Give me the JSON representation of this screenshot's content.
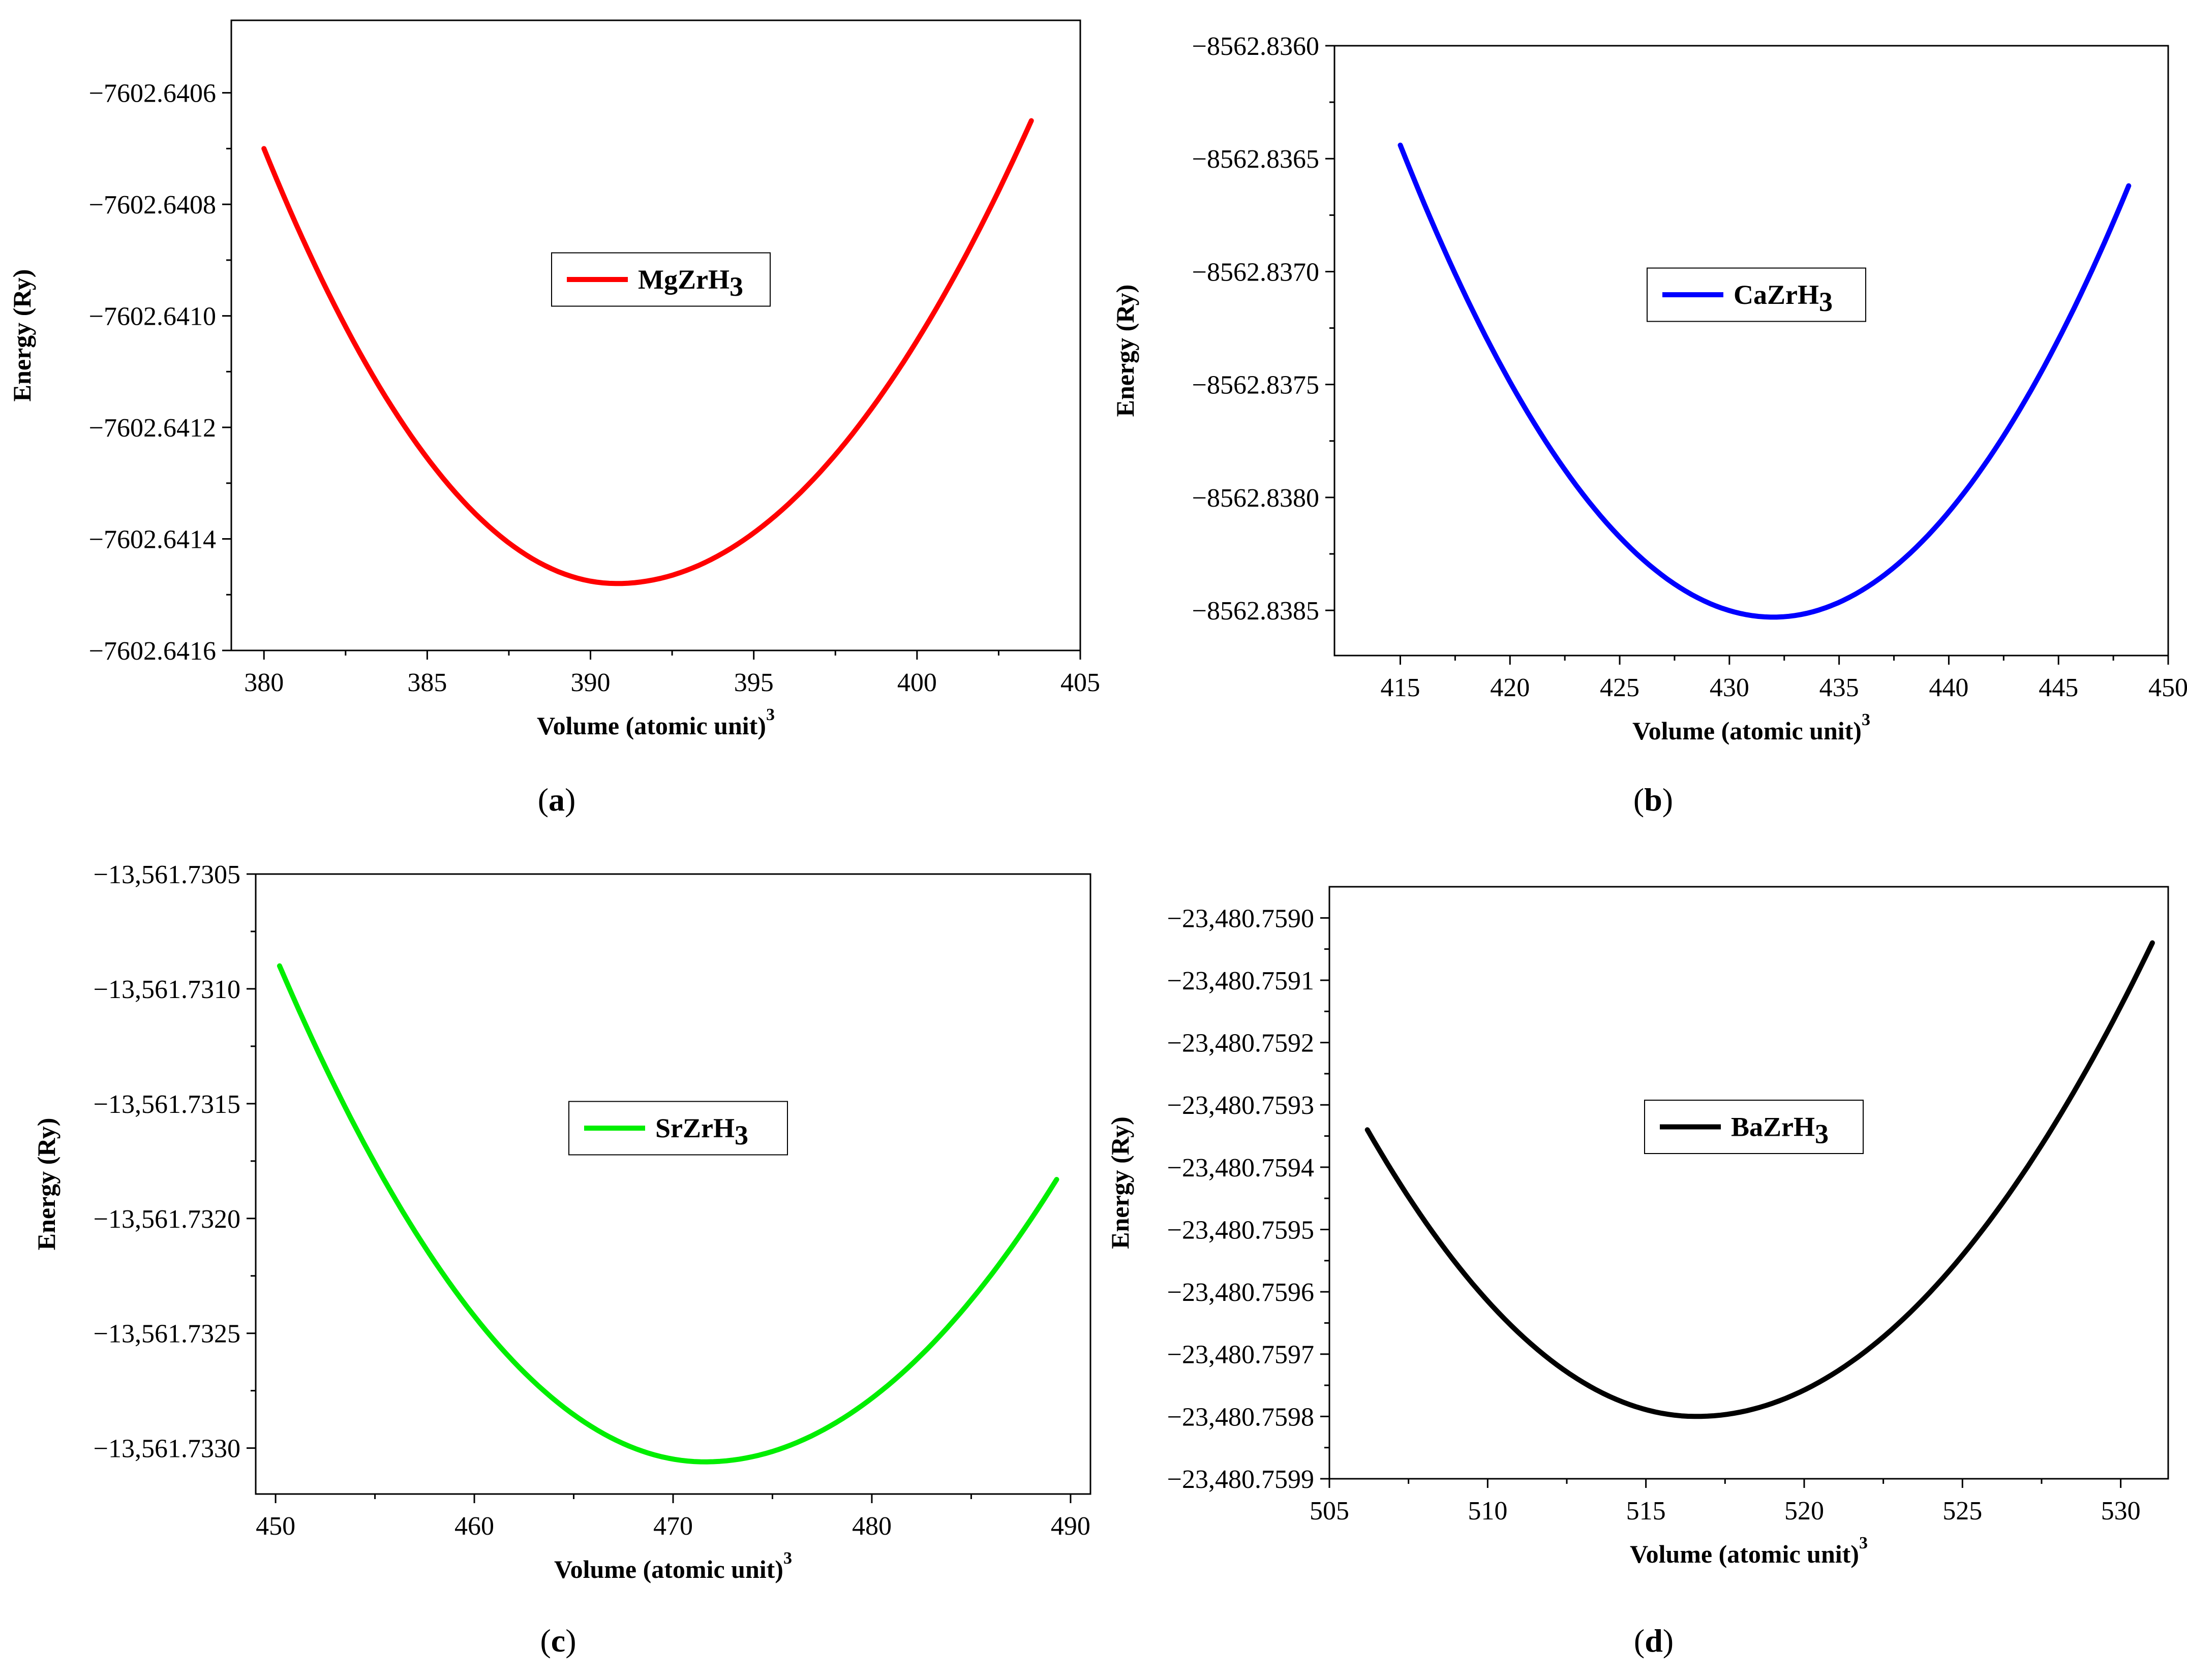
{
  "chart_data": [
    {
      "type": "line",
      "caption": "a",
      "title": "",
      "xlabel": "Volume (atomic unit)",
      "xlabel_superscript": "3",
      "ylabel": "Energy (Ry)",
      "xlim": [
        379,
        405
      ],
      "ylim": [
        -7602.6416,
        -7602.64047
      ],
      "x_ticks": [
        380,
        385,
        390,
        395,
        400,
        405
      ],
      "y_ticks": [
        -7602.6406,
        -7602.6408,
        -7602.641,
        -7602.6412,
        -7602.6414,
        -7602.6416
      ],
      "x_tick_labels": [
        "380",
        "385",
        "390",
        "395",
        "400",
        "405"
      ],
      "y_tick_labels": [
        "−7602.6406",
        "−7602.6408",
        "−7602.6410",
        "−7602.6412",
        "−7602.6414",
        "−7602.6416"
      ],
      "series": [
        {
          "name": "MgZrH3",
          "legend_base": "MgZrH",
          "legend_sub": "3",
          "color": "#ff0000",
          "fit": {
            "x_start": 380.0,
            "x_end": 403.5,
            "x_min": 390.8,
            "y_min": -7602.64148,
            "y_start": -7602.6407,
            "y_end": -7602.64065
          }
        }
      ],
      "legend_position": "center"
    },
    {
      "type": "line",
      "caption": "b",
      "title": "",
      "xlabel": "Volume (atomic unit)",
      "xlabel_superscript": "3",
      "ylabel": "Energy (Ry)",
      "xlim": [
        412,
        450
      ],
      "ylim": [
        -8562.8387,
        -8562.836
      ],
      "x_ticks": [
        415,
        420,
        425,
        430,
        435,
        440,
        445,
        450
      ],
      "y_ticks": [
        -8562.836,
        -8562.8365,
        -8562.837,
        -8562.8375,
        -8562.838,
        -8562.8385
      ],
      "x_tick_labels": [
        "415",
        "420",
        "425",
        "430",
        "435",
        "440",
        "445",
        "450"
      ],
      "y_tick_labels": [
        "−8562.8360",
        "−8562.8365",
        "−8562.8370",
        "−8562.8375",
        "−8562.8380",
        "−8562.8385"
      ],
      "series": [
        {
          "name": "CaZrH3",
          "legend_base": "CaZrH",
          "legend_sub": "3",
          "color": "#0000ff",
          "fit": {
            "x_start": 415.0,
            "x_end": 448.2,
            "x_min": 432.0,
            "y_min": -8562.83853,
            "y_start": -8562.83644,
            "y_end": -8562.83662
          }
        }
      ],
      "legend_position": "center"
    },
    {
      "type": "line",
      "caption": "c",
      "title": "",
      "xlabel": "Volume (atomic unit)",
      "xlabel_superscript": "3",
      "ylabel": "Energy (Ry)",
      "xlim": [
        449,
        491
      ],
      "ylim": [
        -13561.7332,
        -13561.7305
      ],
      "x_ticks": [
        450,
        460,
        470,
        480,
        490
      ],
      "y_ticks": [
        -13561.7305,
        -13561.731,
        -13561.7315,
        -13561.732,
        -13561.7325,
        -13561.733
      ],
      "x_tick_labels": [
        "450",
        "460",
        "470",
        "480",
        "490"
      ],
      "y_tick_labels": [
        "−13,561.7305",
        "−13,561.7310",
        "−13,561.7315",
        "−13,561.7320",
        "−13,561.7325",
        "−13,561.7330"
      ],
      "series": [
        {
          "name": "SrZrH3",
          "legend_base": "SrZrH",
          "legend_sub": "3",
          "color": "#00ee00",
          "fit": {
            "x_start": 450.2,
            "x_end": 489.3,
            "x_min": 471.6,
            "y_min": -13561.73306,
            "y_start": -13561.7309,
            "y_end": -13561.73183
          }
        }
      ],
      "legend_position": "center"
    },
    {
      "type": "line",
      "caption": "d",
      "title": "",
      "xlabel": "Volume (atomic unit)",
      "xlabel_superscript": "3",
      "ylabel": "Energy (Ry)",
      "xlim": [
        505,
        531.5
      ],
      "ylim": [
        -23480.7599,
        -23480.75895
      ],
      "x_ticks": [
        505,
        510,
        515,
        520,
        525,
        530
      ],
      "y_ticks": [
        -23480.759,
        -23480.7591,
        -23480.7592,
        -23480.7593,
        -23480.7594,
        -23480.7595,
        -23480.7596,
        -23480.7597,
        -23480.7598,
        -23480.7599
      ],
      "x_tick_labels": [
        "505",
        "510",
        "515",
        "520",
        "525",
        "530"
      ],
      "y_tick_labels": [
        "−23,480.7590",
        "−23,480.7591",
        "−23,480.7592",
        "−23,480.7593",
        "−23,480.7594",
        "−23,480.7595",
        "−23,480.7596",
        "−23,480.7597",
        "−23,480.7598",
        "−23,480.7599"
      ],
      "series": [
        {
          "name": "BaZrH3",
          "legend_base": "BaZrH",
          "legend_sub": "3",
          "color": "#000000",
          "fit": {
            "x_start": 506.2,
            "x_end": 531.0,
            "x_min": 516.6,
            "y_min": -23480.7598,
            "y_start": -23480.75934,
            "y_end": -23480.75904
          }
        }
      ],
      "legend_position": "center"
    }
  ]
}
